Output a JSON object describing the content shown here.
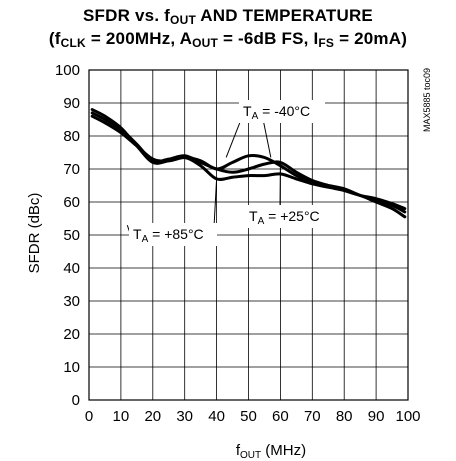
{
  "title": {
    "line1_a": "SFDR vs. f",
    "line1_sub": "OUT",
    "line1_b": " AND TEMPERATURE",
    "line2_a": "(f",
    "line2_sub1": "CLK",
    "line2_b": " = 200MHz, A",
    "line2_sub2": "OUT",
    "line2_c": " = -6dB FS, I",
    "line2_sub3": "FS",
    "line2_d": " = 20mA)"
  },
  "chart_data": {
    "type": "line",
    "xlabel_main": "f",
    "xlabel_sub": "OUT",
    "xlabel_unit": " (MHz)",
    "ylabel": "SFDR (dBc)",
    "xlim": [
      0,
      100
    ],
    "ylim": [
      0,
      100
    ],
    "xticks": [
      0,
      10,
      20,
      30,
      40,
      50,
      60,
      70,
      80,
      90,
      100
    ],
    "yticks": [
      0,
      10,
      20,
      30,
      40,
      50,
      60,
      70,
      80,
      90,
      100
    ],
    "grid": true,
    "watermark": "MAX5885 toc09",
    "series": [
      {
        "name": "TA = -40°C",
        "label_main": "T",
        "label_sub": "A",
        "label_rest": " = -40°C",
        "x": [
          1,
          5,
          10,
          15,
          20,
          25,
          30,
          35,
          40,
          45,
          50,
          55,
          60,
          65,
          70,
          75,
          80,
          85,
          90,
          95,
          99
        ],
        "y": [
          86,
          84,
          81,
          77,
          73,
          72.5,
          73.5,
          72.5,
          70,
          72,
          74,
          73.5,
          71,
          68,
          66,
          65,
          64,
          62,
          60.5,
          59,
          57
        ]
      },
      {
        "name": "TA = +25°C",
        "label_main": "T",
        "label_sub": "A",
        "label_rest": " = +25°C",
        "x": [
          1,
          5,
          10,
          15,
          20,
          25,
          30,
          35,
          40,
          45,
          50,
          55,
          60,
          65,
          70,
          75,
          80,
          85,
          90,
          95,
          99
        ],
        "y": [
          87,
          85,
          82,
          77.5,
          72.5,
          73,
          74,
          72,
          70,
          69,
          70,
          71.5,
          72,
          69,
          66.5,
          65,
          63.5,
          62,
          61,
          59.5,
          58
        ]
      },
      {
        "name": "TA = +85°C",
        "label_main": "T",
        "label_sub": "A",
        "label_rest": " = +85°C",
        "x": [
          1,
          5,
          10,
          15,
          20,
          25,
          30,
          35,
          40,
          45,
          50,
          55,
          60,
          65,
          70,
          75,
          80,
          85,
          90,
          95,
          99
        ],
        "y": [
          88,
          86,
          82.5,
          77,
          72,
          72.5,
          73.5,
          71,
          67,
          67.5,
          68,
          68,
          68.5,
          67,
          65.5,
          64.5,
          63.5,
          62,
          60,
          58,
          55.5
        ]
      }
    ]
  }
}
